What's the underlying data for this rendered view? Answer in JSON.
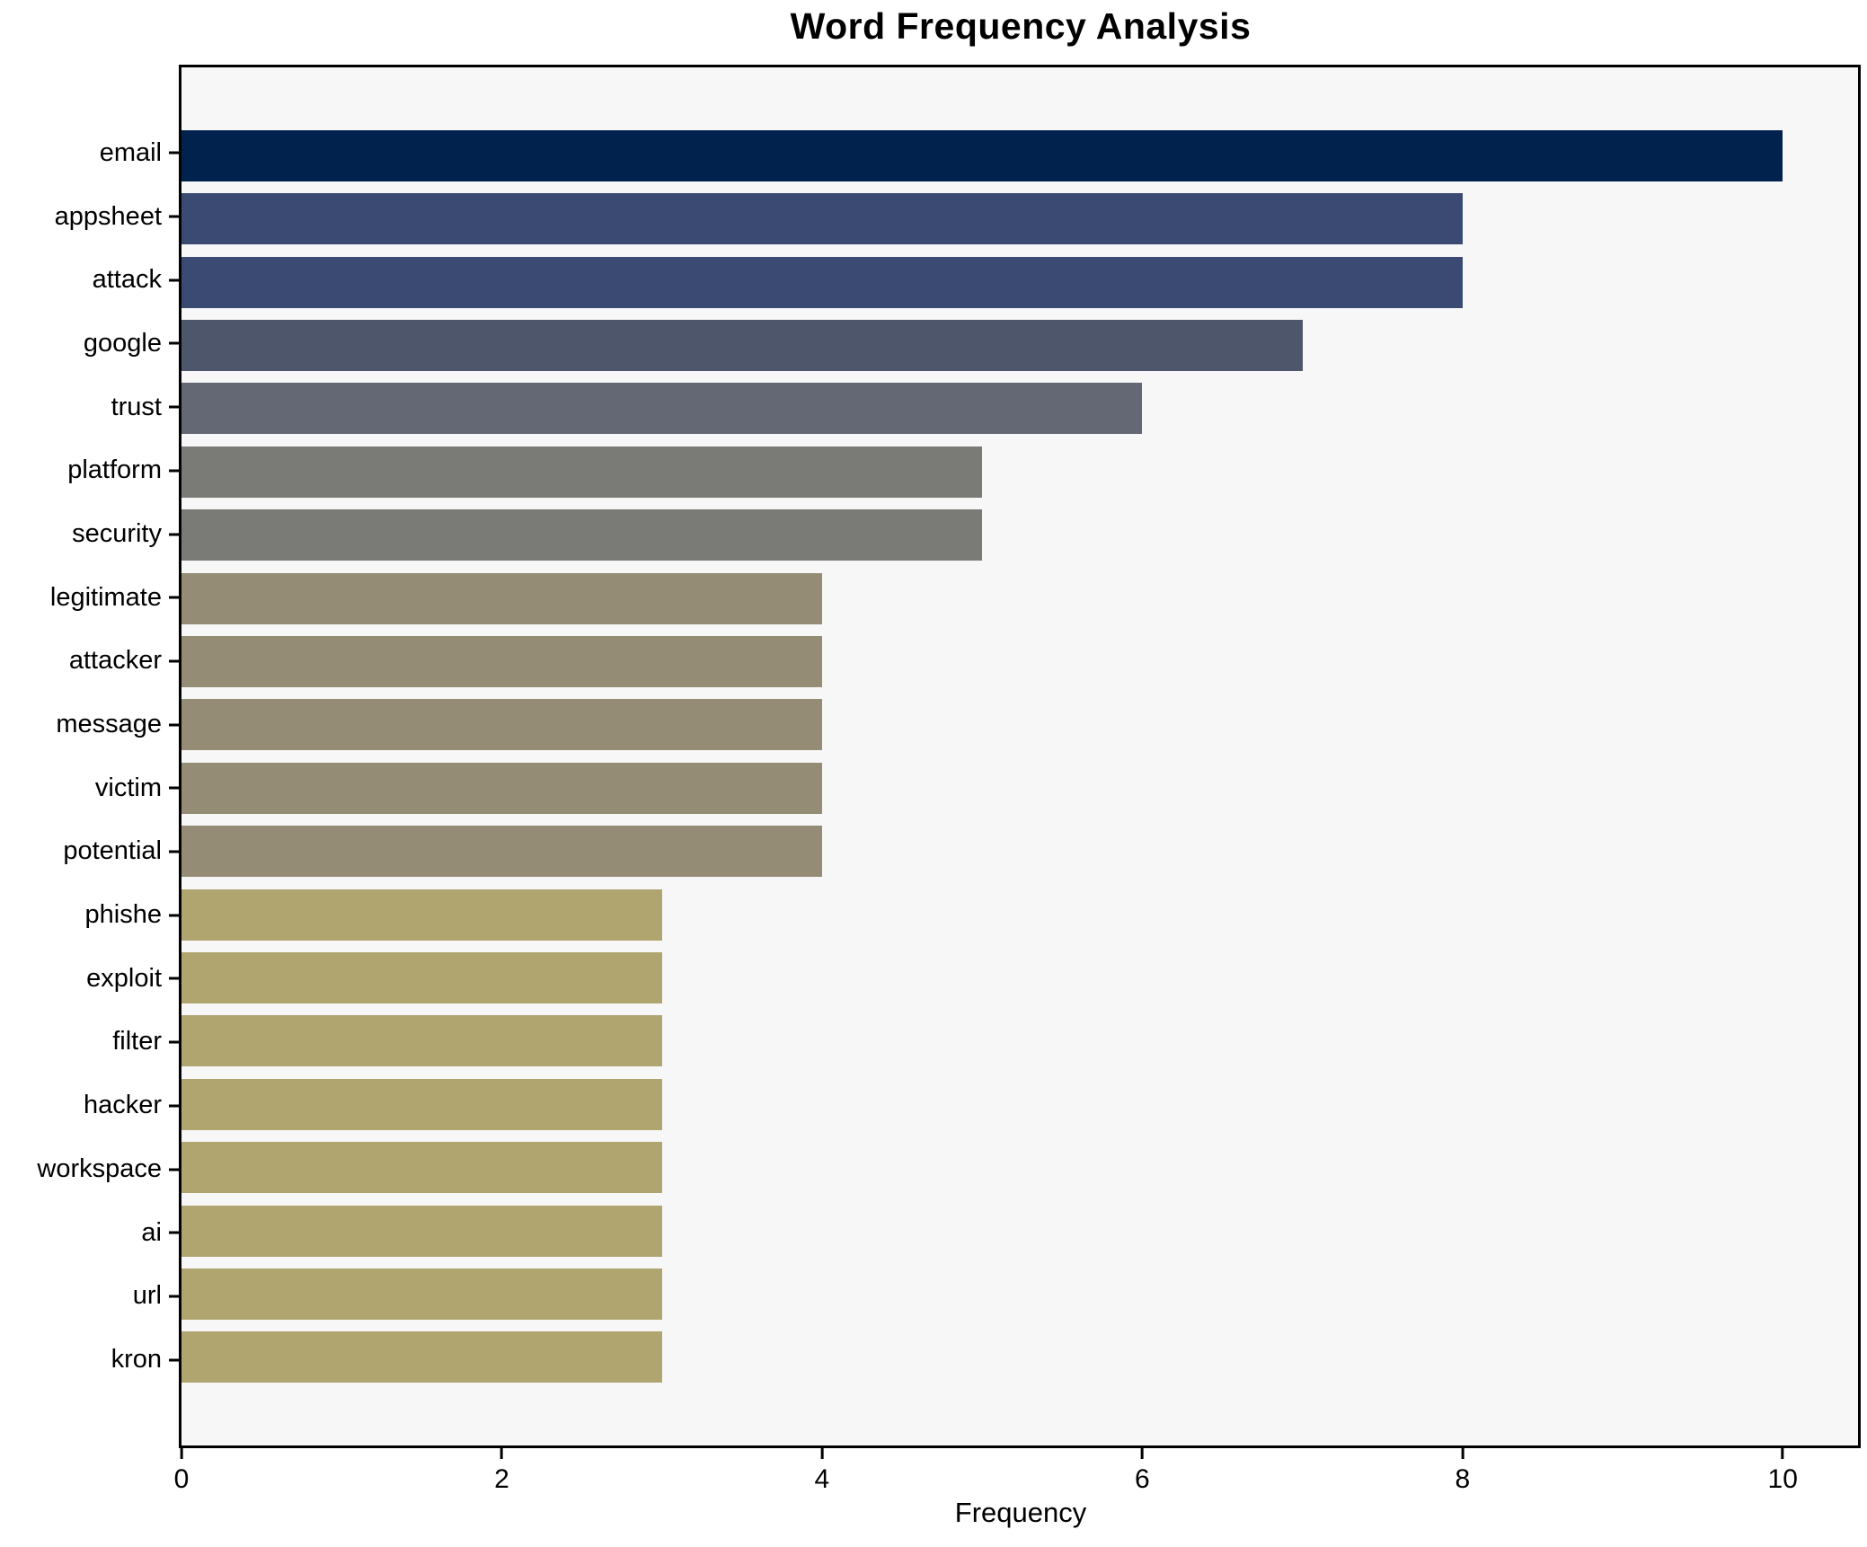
{
  "chart_data": {
    "type": "bar",
    "orientation": "horizontal",
    "title": "Word Frequency Analysis",
    "xlabel": "Frequency",
    "ylabel": "",
    "categories": [
      "email",
      "appsheet",
      "attack",
      "google",
      "trust",
      "platform",
      "security",
      "legitimate",
      "attacker",
      "message",
      "victim",
      "potential",
      "phishe",
      "exploit",
      "filter",
      "hacker",
      "workspace",
      "ai",
      "url",
      "kron"
    ],
    "values": [
      10,
      8,
      8,
      7,
      6,
      5,
      5,
      4,
      4,
      4,
      4,
      4,
      3,
      3,
      3,
      3,
      3,
      3,
      3,
      3
    ],
    "bar_colors": [
      "#02224e",
      "#3a4a72",
      "#3a4a72",
      "#4e566b",
      "#646874",
      "#7a7a76",
      "#7a7a76",
      "#948c74",
      "#948c74",
      "#948c74",
      "#948c74",
      "#948c74",
      "#b0a56f",
      "#b0a56f",
      "#b0a56f",
      "#b0a56f",
      "#b0a56f",
      "#b0a56f",
      "#b0a56f",
      "#b0a56f"
    ],
    "x_ticks": [
      0,
      2,
      4,
      6,
      8,
      10
    ],
    "xlim": [
      0,
      10.47
    ],
    "grid": false,
    "legend": null,
    "plot_background": "#f7f7f7",
    "figure_background": "#ffffff",
    "axis_color": "#000000"
  }
}
